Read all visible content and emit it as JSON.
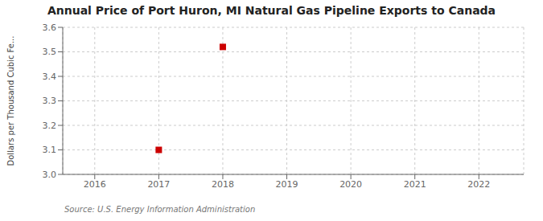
{
  "chart_data": {
    "type": "scatter",
    "title": "Annual Price of Port Huron, MI Natural Gas Pipeline Exports to Canada",
    "ylabel": "Dollars per Thousand Cubic Fe...",
    "source": "Source: U.S. Energy Information Administration",
    "x": [
      2017,
      2018
    ],
    "values": [
      3.1,
      3.52
    ],
    "xlim": [
      2015.5,
      2022.7
    ],
    "ylim": [
      3.0,
      3.6
    ],
    "xticks": [
      2016,
      2017,
      2018,
      2019,
      2020,
      2021,
      2022
    ],
    "yticks": [
      {
        "value": 3.0,
        "label": "3.0"
      },
      3.1,
      3.2,
      3.3,
      3.4,
      3.5,
      3.6
    ],
    "grid": true,
    "color": "#cc0000",
    "marker": "square"
  }
}
